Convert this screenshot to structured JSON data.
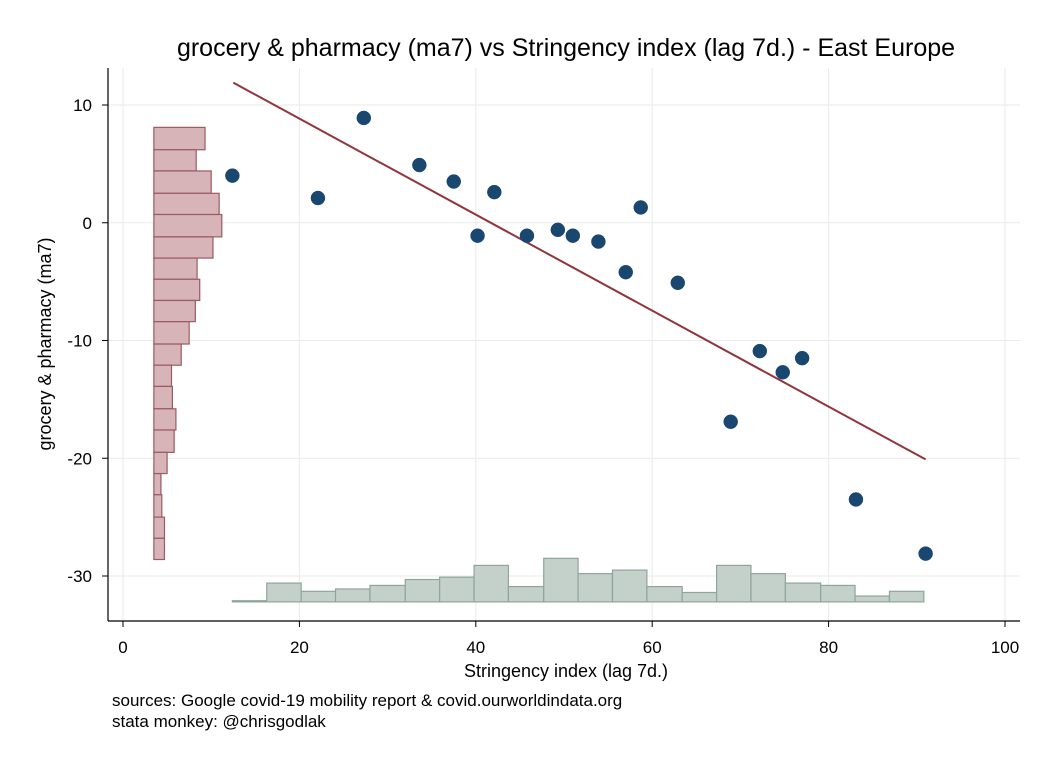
{
  "chart_data": {
    "type": "scatter",
    "title": "grocery & pharmacy (ma7) vs Stringency index (lag 7d.) - East Europe",
    "xlabel": "Stringency index (lag 7d.)",
    "ylabel": "grocery & pharmacy (ma7)",
    "xlim": [
      0,
      100
    ],
    "ylim": [
      -33.5,
      13
    ],
    "xticks": [
      0,
      20,
      40,
      60,
      80,
      100
    ],
    "yticks": [
      10,
      0,
      -10,
      -20,
      -30
    ],
    "grid": true,
    "points": [
      {
        "x": 12.4,
        "y": 4.0
      },
      {
        "x": 22.1,
        "y": 2.1
      },
      {
        "x": 27.3,
        "y": 8.9
      },
      {
        "x": 33.6,
        "y": 4.9
      },
      {
        "x": 37.5,
        "y": 3.5
      },
      {
        "x": 40.2,
        "y": -1.1
      },
      {
        "x": 42.1,
        "y": 2.6
      },
      {
        "x": 45.8,
        "y": -1.1
      },
      {
        "x": 49.3,
        "y": -0.6
      },
      {
        "x": 51.0,
        "y": -1.1
      },
      {
        "x": 53.9,
        "y": -1.6
      },
      {
        "x": 57.0,
        "y": -4.2
      },
      {
        "x": 58.7,
        "y": 1.3
      },
      {
        "x": 62.9,
        "y": -5.1
      },
      {
        "x": 68.9,
        "y": -16.9
      },
      {
        "x": 72.2,
        "y": -10.9
      },
      {
        "x": 74.8,
        "y": -12.7
      },
      {
        "x": 77.0,
        "y": -11.5
      },
      {
        "x": 83.1,
        "y": -23.5
      },
      {
        "x": 91.0,
        "y": -28.1
      }
    ],
    "fit_line": {
      "x1": 12.5,
      "y1": 11.9,
      "x2": 91.0,
      "y2": -20.1
    },
    "y_histogram": [
      {
        "from": 6.2,
        "to": 8.1,
        "v": 5.8
      },
      {
        "from": 4.4,
        "to": 6.2,
        "v": 4.8
      },
      {
        "from": 2.5,
        "to": 4.4,
        "v": 6.5
      },
      {
        "from": 0.7,
        "to": 2.5,
        "v": 7.4
      },
      {
        "from": -1.2,
        "to": 0.7,
        "v": 7.7
      },
      {
        "from": -3.0,
        "to": -1.2,
        "v": 6.7
      },
      {
        "from": -4.8,
        "to": -3.0,
        "v": 4.9
      },
      {
        "from": -6.6,
        "to": -4.8,
        "v": 5.2
      },
      {
        "from": -8.4,
        "to": -6.6,
        "v": 4.7
      },
      {
        "from": -10.3,
        "to": -8.4,
        "v": 4.0
      },
      {
        "from": -12.1,
        "to": -10.3,
        "v": 3.1
      },
      {
        "from": -13.9,
        "to": -12.1,
        "v": 2.0
      },
      {
        "from": -15.8,
        "to": -13.9,
        "v": 2.1
      },
      {
        "from": -17.6,
        "to": -15.8,
        "v": 2.5
      },
      {
        "from": -19.5,
        "to": -17.6,
        "v": 2.3
      },
      {
        "from": -21.3,
        "to": -19.5,
        "v": 1.5
      },
      {
        "from": -23.1,
        "to": -21.3,
        "v": 0.8
      },
      {
        "from": -25.0,
        "to": -23.1,
        "v": 0.9
      },
      {
        "from": -26.8,
        "to": -25.0,
        "v": 1.2
      },
      {
        "from": -28.6,
        "to": -26.8,
        "v": 1.2
      }
    ],
    "x_histogram": [
      {
        "from": 12.4,
        "to": 16.3,
        "v": 0.1
      },
      {
        "from": 16.3,
        "to": 20.2,
        "v": 1.6
      },
      {
        "from": 20.2,
        "to": 24.1,
        "v": 0.9
      },
      {
        "from": 24.1,
        "to": 28.0,
        "v": 1.1
      },
      {
        "from": 28.0,
        "to": 32.0,
        "v": 1.4
      },
      {
        "from": 32.0,
        "to": 35.9,
        "v": 1.9
      },
      {
        "from": 35.9,
        "to": 39.8,
        "v": 2.1
      },
      {
        "from": 39.8,
        "to": 43.7,
        "v": 3.1
      },
      {
        "from": 43.7,
        "to": 47.7,
        "v": 1.3
      },
      {
        "from": 47.7,
        "to": 51.6,
        "v": 3.7
      },
      {
        "from": 51.6,
        "to": 55.5,
        "v": 2.4
      },
      {
        "from": 55.5,
        "to": 59.4,
        "v": 2.7
      },
      {
        "from": 59.4,
        "to": 63.4,
        "v": 1.3
      },
      {
        "from": 63.4,
        "to": 67.3,
        "v": 0.8
      },
      {
        "from": 67.3,
        "to": 71.2,
        "v": 3.1
      },
      {
        "from": 71.2,
        "to": 75.1,
        "v": 2.4
      },
      {
        "from": 75.1,
        "to": 79.1,
        "v": 1.6
      },
      {
        "from": 79.1,
        "to": 83.0,
        "v": 1.4
      },
      {
        "from": 83.0,
        "to": 86.9,
        "v": 0.5
      },
      {
        "from": 86.9,
        "to": 90.8,
        "v": 0.9
      }
    ],
    "colors": {
      "points": "#1a476f",
      "fit_line": "#90353b",
      "y_hist_fill": "#d6b4b8",
      "y_hist_stroke": "#9c5a62",
      "x_hist_fill": "#c4d1cb",
      "x_hist_stroke": "#8fa59b",
      "grid": "#eaeaea"
    }
  },
  "notes": {
    "source": "sources: Google covid-19 mobility report & covid.ourworldindata.org",
    "author": "stata monkey: @chrisgodlak"
  }
}
